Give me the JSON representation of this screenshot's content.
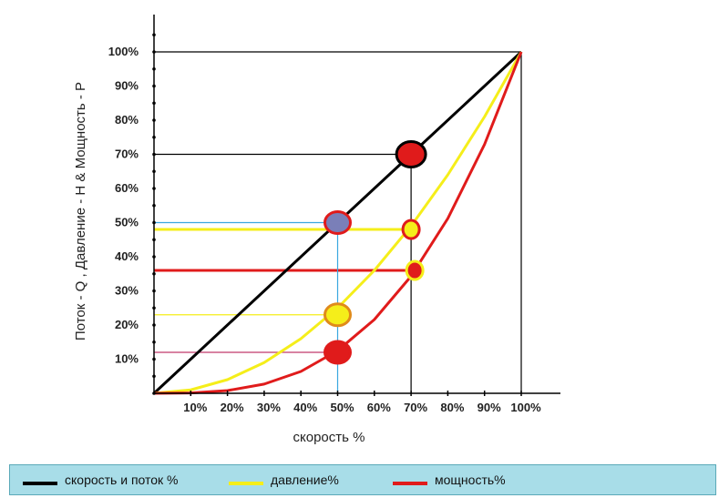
{
  "chart_data": {
    "type": "line",
    "xlabel": "скорость %",
    "ylabel": "Поток - Q ,  Давление - H & Мощность - P",
    "xlim": [
      0,
      100
    ],
    "ylim": [
      0,
      100
    ],
    "x_ticks": [
      "10%",
      "20%",
      "30%",
      "40%",
      "50%",
      "60%",
      "70%",
      "80%",
      "90%",
      "100%"
    ],
    "x_tick_values": [
      10,
      20,
      30,
      40,
      50,
      60,
      70,
      80,
      90,
      100
    ],
    "y_ticks": [
      "10%",
      "20%",
      "30%",
      "40%",
      "50%",
      "60%",
      "70%",
      "80%",
      "90%",
      "100%"
    ],
    "y_tick_values": [
      10,
      20,
      30,
      40,
      50,
      60,
      70,
      80,
      90,
      100
    ],
    "grid": false,
    "legend_position": "bottom",
    "series": [
      {
        "name": "скорость и поток %",
        "color": "#000000",
        "x": [
          0,
          50,
          70,
          100
        ],
        "y": [
          0,
          50,
          70,
          100
        ]
      },
      {
        "name": "давление%",
        "color": "#f5ee1a",
        "x": [
          0,
          10,
          20,
          30,
          40,
          50,
          60,
          70,
          80,
          90,
          100
        ],
        "y": [
          0,
          1,
          4,
          9,
          16,
          25,
          36,
          49,
          64,
          81,
          100
        ]
      },
      {
        "name": "мощность%",
        "color": "#e01b1b",
        "x": [
          0,
          10,
          20,
          30,
          40,
          50,
          60,
          70,
          80,
          90,
          100
        ],
        "y": [
          0,
          0.1,
          0.8,
          2.7,
          6.4,
          12.5,
          21.6,
          34.3,
          51.2,
          72.9,
          100
        ]
      }
    ],
    "reference_lines": [
      {
        "from_x": 0,
        "to_x": 100,
        "y": 100,
        "color": "#000000"
      },
      {
        "from_x": 0,
        "to_x": 70,
        "y": 70,
        "color": "#000000"
      },
      {
        "from_x": 0,
        "to_x": 50,
        "y": 50,
        "color": "#3aa7e0"
      },
      {
        "from_x": 0,
        "to_x": 70,
        "y": 48,
        "color": "#f5ee1a"
      },
      {
        "from_x": 0,
        "to_x": 70,
        "y": 36,
        "color": "#e01b1b"
      },
      {
        "from_x": 0,
        "to_x": 50,
        "y": 23,
        "color": "#f5ee1a"
      },
      {
        "from_x": 0,
        "to_x": 50,
        "y": 12,
        "color": "#c0396a"
      }
    ],
    "vertical_lines": [
      {
        "x": 50,
        "from_y": 0,
        "to_y": 50,
        "color": "#3aa7e0"
      },
      {
        "x": 70,
        "from_y": 0,
        "to_y": 70,
        "color": "#000000"
      },
      {
        "x": 100,
        "from_y": 0,
        "to_y": 100,
        "color": "#000000"
      }
    ],
    "markers": [
      {
        "x": 70,
        "y": 70,
        "fill": "#e01b1b",
        "stroke": "#000000",
        "size": "large"
      },
      {
        "x": 50,
        "y": 50,
        "fill": "#7a7fb8",
        "stroke": "#e01b1b",
        "size": "medium"
      },
      {
        "x": 70,
        "y": 48,
        "fill": "#f5ee1a",
        "stroke": "#e01b1b",
        "size": "small"
      },
      {
        "x": 71,
        "y": 36,
        "fill": "#e01b1b",
        "stroke": "#f5ee1a",
        "size": "small"
      },
      {
        "x": 50,
        "y": 23,
        "fill": "#f5ee1a",
        "stroke": "#e08a1a",
        "size": "medium"
      },
      {
        "x": 50,
        "y": 12,
        "fill": "#e01b1b",
        "stroke": "#e01b1b",
        "size": "medium"
      }
    ]
  },
  "legend": {
    "items": [
      {
        "label": "скорость и поток %",
        "color": "#000000"
      },
      {
        "label": "давление%",
        "color": "#f5ee1a"
      },
      {
        "label": "мощность%",
        "color": "#e01b1b"
      }
    ]
  }
}
